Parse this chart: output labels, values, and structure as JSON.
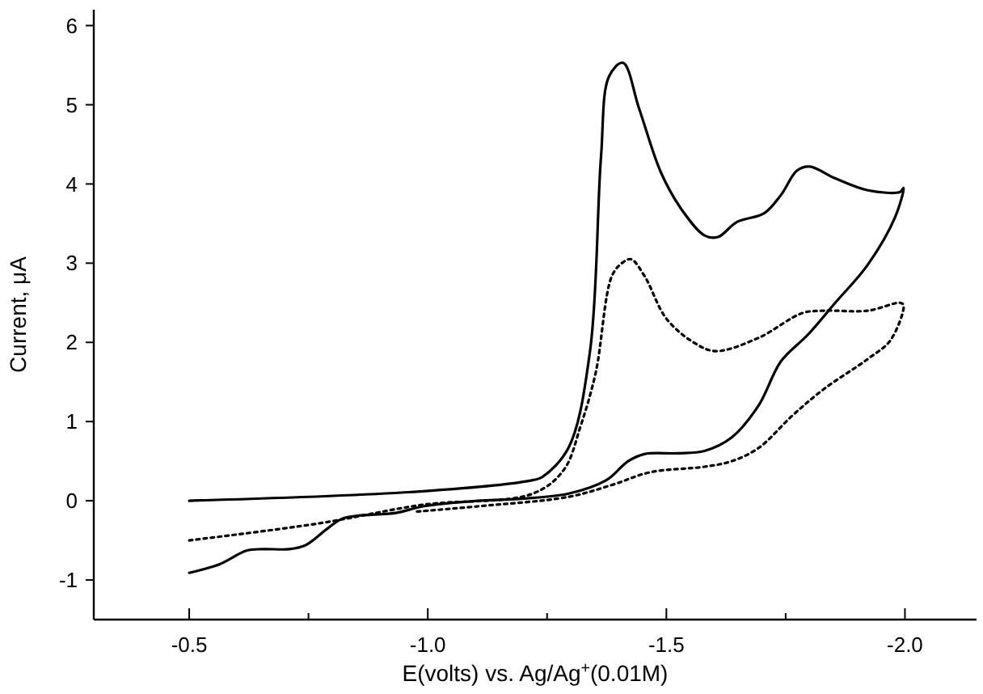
{
  "chart_data": {
    "type": "line",
    "xlabel": "E(volts) vs. Ag/Ag$^{+}$(0.01M)",
    "ylabel": "Current,  μA",
    "xlim": [
      -0.3,
      -2.15
    ],
    "ylim": [
      -1.5,
      6.2
    ],
    "xticks": [
      {
        "value": -0.5,
        "label": "-0.5"
      },
      {
        "value": -0.75,
        "label": null
      },
      {
        "value": -1.0,
        "label": "-1.0"
      },
      {
        "value": -1.25,
        "label": null
      },
      {
        "value": -1.5,
        "label": "-1.5"
      },
      {
        "value": -1.75,
        "label": null
      },
      {
        "value": -2.0,
        "label": "-2.0"
      }
    ],
    "yticks": [
      -1,
      0,
      1,
      2,
      3,
      4,
      5,
      6
    ],
    "grid": false,
    "marker": "none",
    "series": [
      {
        "color": "#000000",
        "line_style": "solid",
        "x": [
          -0.5,
          -0.99,
          -1.22,
          -1.24,
          -1.295,
          -1.34,
          -1.363,
          -1.38,
          -1.409,
          -1.443,
          -1.489,
          -1.534,
          -1.58,
          -1.608,
          -1.648,
          -1.705,
          -1.74,
          -1.774,
          -1.8,
          -1.854,
          -1.922,
          -1.99,
          -1.997,
          -1.98,
          -1.922,
          -1.854,
          -1.797,
          -1.74,
          -1.694,
          -1.637,
          -1.58,
          -1.523,
          -1.454,
          -1.42,
          -1.374,
          -1.295,
          -1.18,
          -1.105,
          -0.99,
          -0.936,
          -0.823,
          -0.79,
          -0.744,
          -0.71,
          -0.654,
          -0.62,
          -0.564,
          -0.5
        ],
        "values": [
          0,
          0.12,
          0.26,
          0.3,
          0.67,
          1.89,
          4.34,
          5.36,
          5.53,
          4.95,
          4.14,
          3.66,
          3.35,
          3.33,
          3.52,
          3.63,
          3.86,
          4.17,
          4.22,
          4.07,
          3.92,
          3.9,
          3.95,
          3.59,
          2.98,
          2.5,
          2.1,
          1.76,
          1.21,
          0.8,
          0.63,
          0.6,
          0.59,
          0.5,
          0.26,
          0.09,
          0.02,
          0,
          -0.07,
          -0.15,
          -0.22,
          -0.35,
          -0.56,
          -0.61,
          -0.61,
          -0.63,
          -0.8,
          -0.91
        ]
      },
      {
        "color": "#000000",
        "line_style": "dotted",
        "x": [
          -0.5,
          -0.767,
          -0.99,
          -1.22,
          -1.285,
          -1.32,
          -1.352,
          -1.386,
          -1.409,
          -1.426,
          -1.454,
          -1.5,
          -1.557,
          -1.603,
          -1.694,
          -1.785,
          -1.83,
          -1.922,
          -1.99,
          -1.997,
          -1.97,
          -1.922,
          -1.83,
          -1.763,
          -1.694,
          -1.637,
          -1.58,
          -1.466,
          -1.386,
          -1.295,
          -1.105,
          -0.97
        ],
        "values": [
          -0.5,
          -0.29,
          -0.05,
          0.09,
          0.39,
          0.94,
          1.62,
          2.84,
          3.01,
          3.05,
          2.84,
          2.3,
          2.0,
          1.89,
          2.06,
          2.37,
          2.4,
          2.4,
          2.5,
          2.47,
          2.03,
          1.79,
          1.41,
          1.07,
          0.67,
          0.5,
          0.43,
          0.36,
          0.2,
          0.05,
          -0.07,
          -0.14
        ]
      }
    ]
  }
}
